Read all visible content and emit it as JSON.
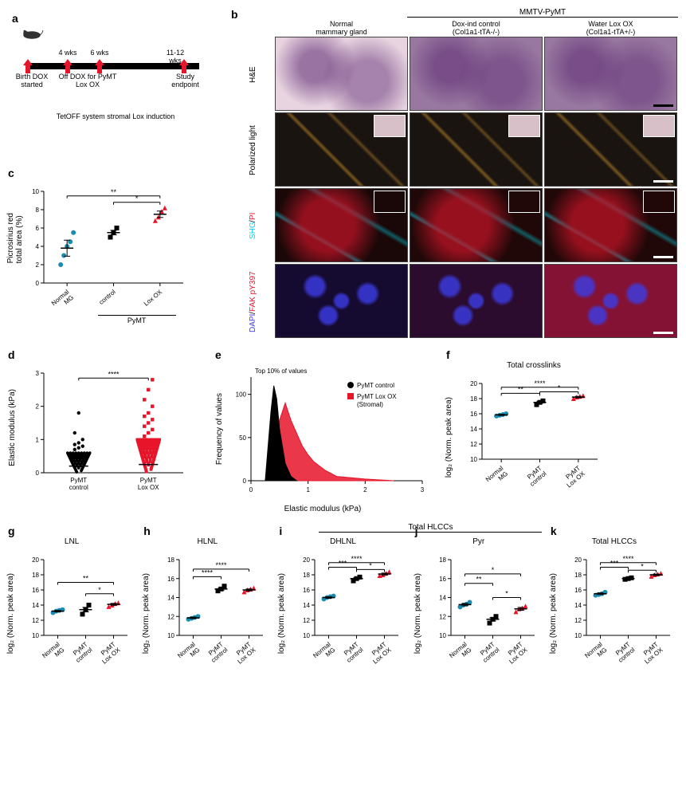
{
  "panel_a": {
    "label": "a",
    "tl_labels_top": [
      "4 wks",
      "6 wks",
      "11-12 wks"
    ],
    "tl_birth": "Birth\nDOX\nstarted",
    "tl_off": "Off DOX for\nPyMT Lox OX",
    "tl_end": "Study\nendpoint",
    "tl_system": "TetOFF system\nstromal Lox induction",
    "marker_color": "#e8142a"
  },
  "panel_b": {
    "label": "b",
    "header_top": "MMTV-PyMT",
    "col_headers": [
      {
        "l1": "Normal",
        "l2": "mammary gland"
      },
      {
        "l1": "Dox-ind control",
        "l2": "(Col1a1-tTA-/-)"
      },
      {
        "l1": "Water Lox OX",
        "l2": "(Col1a1-tTA+/-)"
      }
    ],
    "row_labels": [
      "H&E",
      "Polarized light",
      "SHG / PI",
      "DAPI /\nFAK pY397"
    ],
    "row_label_colors": [
      {
        "text": "#000"
      },
      {
        "text": "#000"
      },
      {
        "part1": "SHG",
        "c1": "#00d4e8",
        "sep": " / ",
        "part2": "PI",
        "c2": "#e8142a"
      },
      {
        "part1": "DAPI",
        "c1": "#3a3ae8",
        "sep": " /\n",
        "part2": "FAK pY397",
        "c2": "#e8142a"
      }
    ],
    "cells": [
      [
        {
          "bg": "#e8d4e0"
        },
        {
          "bg": "#9878a0"
        },
        {
          "bg": "#9878a0"
        }
      ],
      [
        {
          "bg": "#1a1410",
          "inset": "#d8c0c8"
        },
        {
          "bg": "#1a1410",
          "inset": "#d8c0c8"
        },
        {
          "bg": "#1a1410",
          "inset": "#d8c0c8"
        }
      ],
      [
        {
          "bg": "#1a0808",
          "inset": "#1a0808"
        },
        {
          "bg": "#200808",
          "inset": "#200808"
        },
        {
          "bg": "#200808",
          "inset": "#200808"
        }
      ],
      [
        {
          "bg": "#0a0a30"
        },
        {
          "bg": "#0a0a30"
        },
        {
          "bg": "#201040"
        }
      ]
    ]
  },
  "panel_c": {
    "label": "c",
    "ylabel": "Picrosirius red\ntotal area (%)",
    "ylim": [
      0,
      10
    ],
    "ytick_step": 2,
    "x_ticks": [
      "Normal\nMG",
      "control",
      "Lox OX"
    ],
    "group_label": "PyMT",
    "series": [
      {
        "x": 0,
        "color": "#1a8cb0",
        "marker": "circle",
        "vals": [
          2.0,
          3.0,
          4.0,
          4.5,
          5.5
        ],
        "mean": 3.8
      },
      {
        "x": 1,
        "color": "#000000",
        "marker": "square",
        "vals": [
          5.0,
          5.5,
          6.0
        ],
        "mean": 5.5
      },
      {
        "x": 2,
        "color": "#e8142a",
        "marker": "triangle",
        "vals": [
          6.8,
          7.2,
          7.8,
          8.2
        ],
        "mean": 7.5
      }
    ],
    "sig": [
      {
        "from": 0,
        "to": 2,
        "y": 9.5,
        "label": "**"
      },
      {
        "from": 1,
        "to": 2,
        "y": 8.8,
        "label": "*"
      }
    ]
  },
  "panel_d": {
    "label": "d",
    "ylabel": "Elastic modulus (kPa)",
    "ylim": [
      0,
      3
    ],
    "ytick_step": 1,
    "x_ticks": [
      "PyMT\ncontrol",
      "PyMT\nLox OX"
    ],
    "series": [
      {
        "x": 0,
        "color": "#000000",
        "marker": "circle",
        "dense_top": 0.6,
        "scatter": [
          0.7,
          0.75,
          0.8,
          0.85,
          0.9,
          1.0,
          1.2,
          1.8
        ],
        "mean": 0.2
      },
      {
        "x": 1,
        "color": "#e8142a",
        "marker": "square",
        "dense_top": 1.0,
        "scatter": [
          1.1,
          1.2,
          1.3,
          1.4,
          1.5,
          1.6,
          1.7,
          1.8,
          2.0,
          2.2,
          2.5,
          2.8
        ],
        "mean": 0.25
      }
    ],
    "sig": [
      {
        "from": 0,
        "to": 1,
        "y": 2.85,
        "label": "****"
      }
    ]
  },
  "panel_e": {
    "label": "e",
    "title": "Top 10% of values",
    "ylabel": "Frequency of values",
    "xlabel": "Elastic modulus (kPa)",
    "xlim": [
      0,
      3
    ],
    "xtick_step": 1,
    "ylim": [
      0,
      120
    ],
    "ytick_step": 50,
    "legend": [
      {
        "label": "PyMT control",
        "color": "#000000",
        "marker": "circle"
      },
      {
        "label": "PyMT Lox OX\n(Stromal)",
        "color": "#e8142a",
        "marker": "square"
      }
    ],
    "curves": {
      "control": {
        "color": "#000000",
        "points": [
          [
            0.25,
            0
          ],
          [
            0.35,
            80
          ],
          [
            0.4,
            110
          ],
          [
            0.45,
            95
          ],
          [
            0.5,
            60
          ],
          [
            0.6,
            20
          ],
          [
            0.7,
            5
          ],
          [
            0.8,
            0
          ]
        ]
      },
      "lox": {
        "color": "#e8142a",
        "points": [
          [
            0.3,
            0
          ],
          [
            0.45,
            30
          ],
          [
            0.5,
            70
          ],
          [
            0.6,
            90
          ],
          [
            0.7,
            70
          ],
          [
            0.8,
            55
          ],
          [
            0.9,
            40
          ],
          [
            1.0,
            30
          ],
          [
            1.1,
            22
          ],
          [
            1.3,
            12
          ],
          [
            1.5,
            5
          ],
          [
            2.0,
            2
          ],
          [
            2.5,
            0
          ]
        ]
      }
    }
  },
  "panel_f": {
    "label": "f",
    "title": "Total crosslinks",
    "ylabel": "log₂ (Norm. peak area)",
    "ylim": [
      10,
      20
    ],
    "ytick_step": 2,
    "x_ticks": [
      "Normal\nMG",
      "PyMT\ncontrol",
      "PyMT\nLox OX"
    ],
    "series": [
      {
        "x": 0,
        "color": "#1a8cb0",
        "marker": "circle",
        "vals": [
          15.7,
          15.8,
          15.9,
          16.0
        ],
        "mean": 15.85
      },
      {
        "x": 1,
        "color": "#000000",
        "marker": "square",
        "vals": [
          17.2,
          17.5,
          17.7
        ],
        "mean": 17.5
      },
      {
        "x": 2,
        "color": "#e8142a",
        "marker": "triangle",
        "vals": [
          18.0,
          18.2,
          18.3,
          18.4
        ],
        "mean": 18.2
      }
    ],
    "sig": [
      {
        "from": 0,
        "to": 2,
        "y": 19.5,
        "label": "****"
      },
      {
        "from": 0,
        "to": 1,
        "y": 18.7,
        "label": "**"
      },
      {
        "from": 1,
        "to": 2,
        "y": 18.9,
        "label": "*"
      }
    ]
  },
  "bottom_panels": [
    {
      "label": "g",
      "title": "LNL",
      "ylim": [
        10,
        20
      ],
      "ytick_step": 2,
      "series": [
        {
          "x": 0,
          "color": "#1a8cb0",
          "marker": "circle",
          "vals": [
            13.0,
            13.2,
            13.3,
            13.4
          ],
          "mean": 13.2
        },
        {
          "x": 1,
          "color": "#000000",
          "marker": "square",
          "vals": [
            12.8,
            13.4,
            14.0
          ],
          "mean": 13.4
        },
        {
          "x": 2,
          "color": "#e8142a",
          "marker": "triangle",
          "vals": [
            13.8,
            14.0,
            14.2,
            14.3
          ],
          "mean": 14.1
        }
      ],
      "sig": [
        {
          "from": 0,
          "to": 2,
          "y": 17,
          "label": "**"
        },
        {
          "from": 1,
          "to": 2,
          "y": 15.5,
          "label": "*"
        }
      ]
    },
    {
      "label": "h",
      "title": "HLNL",
      "ylim": [
        10,
        18
      ],
      "ytick_step": 2,
      "series": [
        {
          "x": 0,
          "color": "#1a8cb0",
          "marker": "circle",
          "vals": [
            11.7,
            11.8,
            11.9,
            12.0
          ],
          "mean": 11.85
        },
        {
          "x": 1,
          "color": "#000000",
          "marker": "square",
          "vals": [
            14.7,
            14.9,
            15.2
          ],
          "mean": 14.9
        },
        {
          "x": 2,
          "color": "#e8142a",
          "marker": "triangle",
          "vals": [
            14.6,
            14.8,
            14.9,
            15.0
          ],
          "mean": 14.8
        }
      ],
      "sig": [
        {
          "from": 0,
          "to": 2,
          "y": 17,
          "label": "****"
        },
        {
          "from": 0,
          "to": 1,
          "y": 16.2,
          "label": "****"
        }
      ]
    },
    {
      "label": "i",
      "title": "DHLNL",
      "ylim": [
        10,
        20
      ],
      "ytick_step": 2,
      "series": [
        {
          "x": 0,
          "color": "#1a8cb0",
          "marker": "circle",
          "vals": [
            14.8,
            15.0,
            15.1,
            15.2
          ],
          "mean": 15.0
        },
        {
          "x": 1,
          "color": "#000000",
          "marker": "square",
          "vals": [
            17.2,
            17.5,
            17.7
          ],
          "mean": 17.5
        },
        {
          "x": 2,
          "color": "#e8142a",
          "marker": "triangle",
          "vals": [
            17.9,
            18.0,
            18.2,
            18.4
          ],
          "mean": 18.1
        }
      ],
      "sig": [
        {
          "from": 0,
          "to": 2,
          "y": 19.6,
          "label": "****"
        },
        {
          "from": 0,
          "to": 1,
          "y": 19.0,
          "label": "***"
        },
        {
          "from": 1,
          "to": 2,
          "y": 18.7,
          "label": "*"
        }
      ]
    },
    {
      "label": "j",
      "title": "Pyr",
      "ylim": [
        10,
        18
      ],
      "ytick_step": 2,
      "series": [
        {
          "x": 0,
          "color": "#1a8cb0",
          "marker": "circle",
          "vals": [
            13.0,
            13.2,
            13.3,
            13.5
          ],
          "mean": 13.25
        },
        {
          "x": 1,
          "color": "#000000",
          "marker": "square",
          "vals": [
            11.3,
            11.7,
            12.0
          ],
          "mean": 11.7
        },
        {
          "x": 2,
          "color": "#e8142a",
          "marker": "triangle",
          "vals": [
            12.5,
            12.8,
            12.9,
            13.1
          ],
          "mean": 12.8
        }
      ],
      "sig": [
        {
          "from": 0,
          "to": 2,
          "y": 16.5,
          "label": "*"
        },
        {
          "from": 0,
          "to": 1,
          "y": 15.5,
          "label": "**"
        },
        {
          "from": 1,
          "to": 2,
          "y": 14.0,
          "label": "*"
        }
      ],
      "header": "Total HLCCs",
      "header_span": true
    },
    {
      "label": "k",
      "title": "Total HLCCs",
      "ylim": [
        10,
        20
      ],
      "ytick_step": 2,
      "series": [
        {
          "x": 0,
          "color": "#1a8cb0",
          "marker": "circle",
          "vals": [
            15.3,
            15.4,
            15.5,
            15.7
          ],
          "mean": 15.5
        },
        {
          "x": 1,
          "color": "#000000",
          "marker": "square",
          "vals": [
            17.4,
            17.5,
            17.6
          ],
          "mean": 17.5
        },
        {
          "x": 2,
          "color": "#e8142a",
          "marker": "triangle",
          "vals": [
            17.8,
            18.0,
            18.1,
            18.2
          ],
          "mean": 18.0
        }
      ],
      "sig": [
        {
          "from": 0,
          "to": 2,
          "y": 19.6,
          "label": "****"
        },
        {
          "from": 0,
          "to": 1,
          "y": 19.0,
          "label": "***"
        },
        {
          "from": 1,
          "to": 2,
          "y": 18.6,
          "label": "*"
        }
      ]
    }
  ],
  "bottom_common": {
    "ylabel": "log₂ (Norm. peak area)",
    "x_ticks": [
      "Normal\nMG",
      "PyMT\ncontrol",
      "PyMT\nLox OX"
    ]
  }
}
